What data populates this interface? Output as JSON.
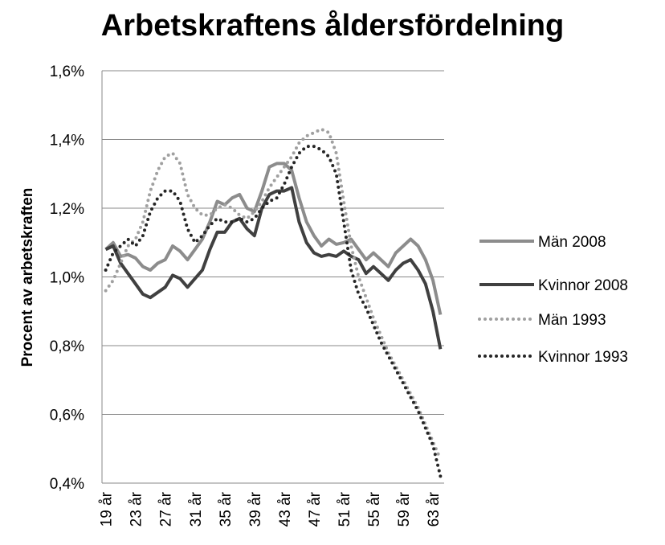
{
  "chart_data": {
    "type": "line",
    "title": "Arbetskraftens åldersfördelning",
    "y_label": "Procent av arbetskraften",
    "categories": [
      "19 år",
      null,
      null,
      null,
      "23 år",
      null,
      null,
      null,
      "27 år",
      null,
      null,
      null,
      "31 år",
      null,
      null,
      null,
      "35 år",
      null,
      null,
      null,
      "39 år",
      null,
      null,
      null,
      "43 år",
      null,
      null,
      null,
      "47 år",
      null,
      null,
      null,
      "51 år",
      null,
      null,
      null,
      "55 år",
      null,
      null,
      null,
      "59 år",
      null,
      null,
      null,
      "63 år",
      null
    ],
    "series": [
      {
        "name": "Män 2008",
        "color": "#8c8c8c",
        "style": "solid",
        "values": [
          1.08,
          1.1,
          1.06,
          1.065,
          1.055,
          1.03,
          1.02,
          1.04,
          1.05,
          1.09,
          1.075,
          1.05,
          1.08,
          1.11,
          1.16,
          1.22,
          1.21,
          1.23,
          1.24,
          1.2,
          1.19,
          1.25,
          1.32,
          1.33,
          1.33,
          1.31,
          1.23,
          1.16,
          1.12,
          1.09,
          1.11,
          1.095,
          1.1,
          1.11,
          1.08,
          1.05,
          1.07,
          1.05,
          1.03,
          1.07,
          1.09,
          1.11,
          1.09,
          1.05,
          0.99,
          0.89
        ]
      },
      {
        "name": "Kvinnor 2008",
        "color": "#404040",
        "style": "solid",
        "values": [
          1.08,
          1.09,
          1.04,
          1.01,
          0.98,
          0.95,
          0.94,
          0.955,
          0.97,
          1.005,
          0.995,
          0.97,
          0.995,
          1.02,
          1.08,
          1.13,
          1.13,
          1.16,
          1.17,
          1.14,
          1.12,
          1.2,
          1.24,
          1.25,
          1.25,
          1.26,
          1.16,
          1.1,
          1.07,
          1.06,
          1.065,
          1.06,
          1.075,
          1.06,
          1.05,
          1.01,
          1.03,
          1.01,
          0.99,
          1.02,
          1.04,
          1.05,
          1.02,
          0.98,
          0.9,
          0.79
        ]
      },
      {
        "name": "Män 1993",
        "color": "#a0a0a0",
        "style": "dotted",
        "values": [
          0.96,
          0.99,
          1.04,
          1.09,
          1.11,
          1.16,
          1.25,
          1.31,
          1.35,
          1.36,
          1.33,
          1.24,
          1.2,
          1.18,
          1.18,
          1.2,
          1.21,
          1.2,
          1.18,
          1.17,
          1.19,
          1.22,
          1.26,
          1.29,
          1.32,
          1.35,
          1.39,
          1.41,
          1.42,
          1.43,
          1.42,
          1.36,
          1.22,
          1.09,
          1.0,
          0.94,
          0.88,
          0.83,
          0.78,
          0.74,
          0.7,
          0.66,
          0.62,
          0.57,
          0.52,
          0.47
        ]
      },
      {
        "name": "Kvinnor 1993",
        "color": "#262626",
        "style": "dotted",
        "values": [
          1.02,
          1.07,
          1.09,
          1.11,
          1.09,
          1.12,
          1.19,
          1.23,
          1.25,
          1.25,
          1.22,
          1.14,
          1.1,
          1.12,
          1.15,
          1.17,
          1.16,
          1.16,
          1.17,
          1.16,
          1.17,
          1.2,
          1.22,
          1.23,
          1.27,
          1.32,
          1.36,
          1.38,
          1.38,
          1.37,
          1.35,
          1.3,
          1.16,
          1.02,
          0.95,
          0.91,
          0.86,
          0.81,
          0.77,
          0.73,
          0.69,
          0.65,
          0.61,
          0.56,
          0.51,
          0.42
        ]
      }
    ],
    "ylim": [
      0.4,
      1.6
    ],
    "yticks": [
      {
        "value": 0.4,
        "label": "0,4%"
      },
      {
        "value": 0.6,
        "label": "0,6%"
      },
      {
        "value": 0.8,
        "label": "0,8%"
      },
      {
        "value": 1.0,
        "label": "1,0%"
      },
      {
        "value": 1.2,
        "label": "1,2%"
      },
      {
        "value": 1.4,
        "label": "1,4%"
      },
      {
        "value": 1.6,
        "label": "1,6%"
      }
    ],
    "grid": true,
    "legend": "right"
  }
}
